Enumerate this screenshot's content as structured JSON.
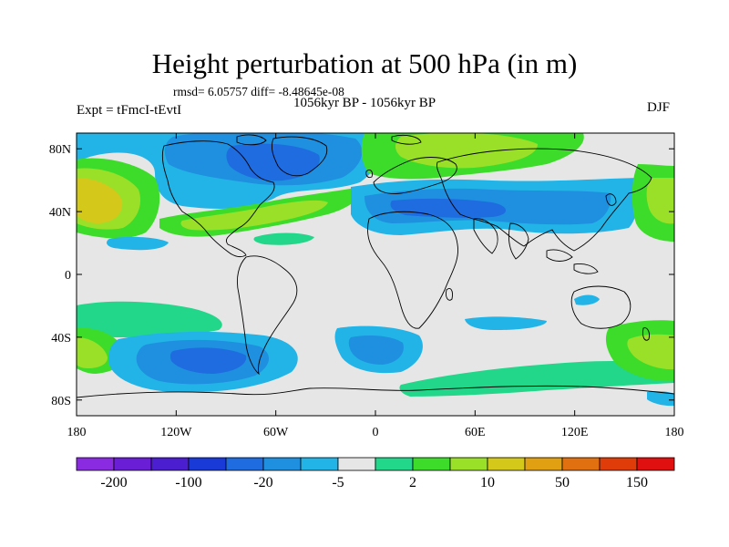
{
  "title": "Height perturbation at 500 hPa (in m)",
  "stats": "rmsd= 6.05757 diff= -8.48645e-08",
  "period": "1056kyr BP - 1056kyr BP",
  "experiment": "Expt = tFmcI-tEvtI",
  "season": "DJF",
  "lat_labels": [
    "80N",
    "40N",
    "0",
    "40S",
    "80S"
  ],
  "lat_values": [
    80,
    40,
    0,
    -40,
    -80
  ],
  "lon_labels": [
    "180",
    "120W",
    "60W",
    "0",
    "60E",
    "120E",
    "180"
  ],
  "lon_values": [
    -180,
    -120,
    -60,
    0,
    60,
    120,
    180
  ],
  "colorbar": {
    "colors": [
      "#8a2be2",
      "#6a1fd6",
      "#4b1fd0",
      "#1a3ad8",
      "#1f6be0",
      "#1f8fe0",
      "#22b4e6",
      "#e6e6e6",
      "#22d68a",
      "#3ddc2a",
      "#9be028",
      "#d4c81a",
      "#e0a012",
      "#e07010",
      "#e03c0a",
      "#e01010"
    ],
    "labels": [
      "-200",
      "-100",
      "-20",
      "-5",
      "2",
      "10",
      "50",
      "150"
    ]
  }
}
